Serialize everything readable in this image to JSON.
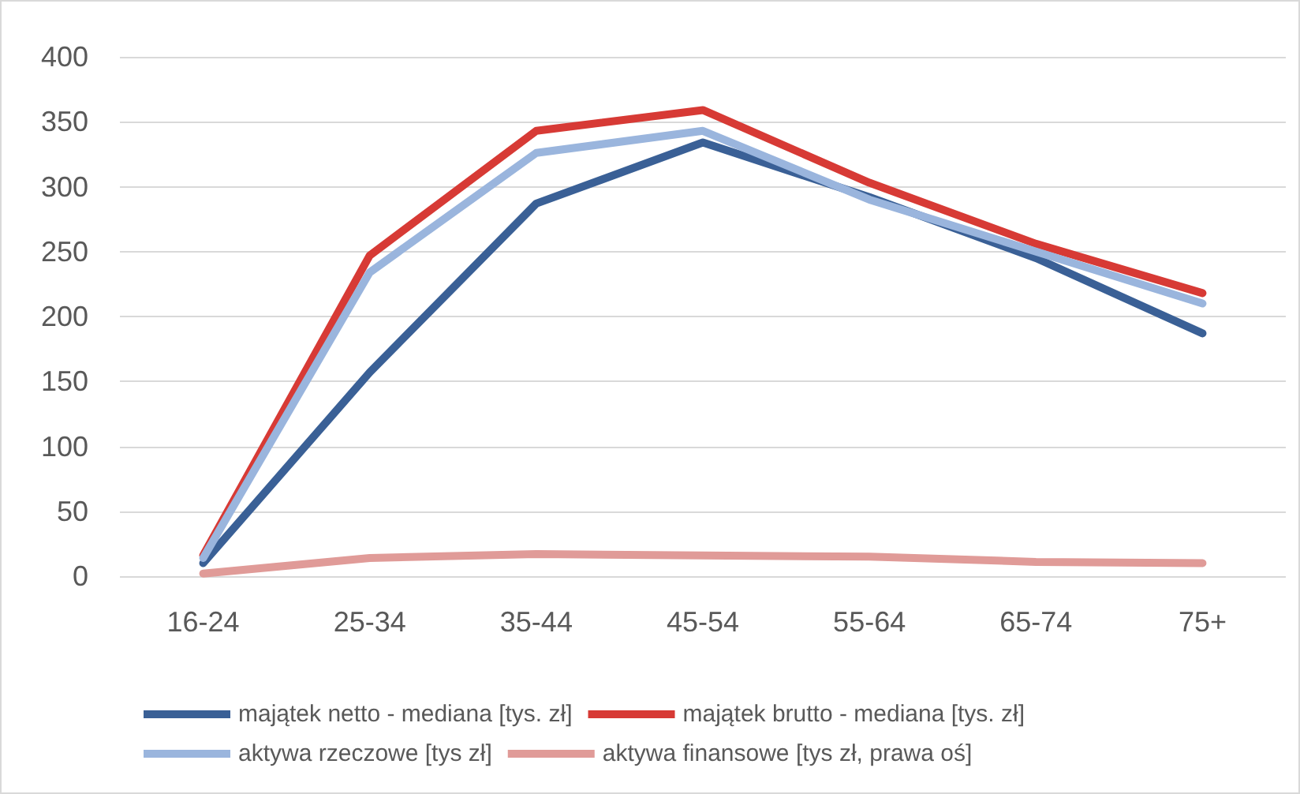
{
  "chart_data": {
    "type": "line",
    "categories": [
      "16-24",
      "25-34",
      "35-44",
      "45-54",
      "55-64",
      "65-74",
      "75+"
    ],
    "series": [
      {
        "name": "majątek netto - mediana [tys. zł]",
        "color": "#3a6096",
        "values": [
          10,
          157,
          287,
          334,
          292,
          245,
          187
        ]
      },
      {
        "name": "majątek brutto - mediana [tys. zł]",
        "color": "#d73a35",
        "values": [
          16,
          247,
          343,
          359,
          303,
          256,
          218
        ]
      },
      {
        "name": "aktywa rzeczowe [tys zł]",
        "color": "#9ab5dd",
        "values": [
          14,
          234,
          326,
          343,
          290,
          250,
          210
        ]
      },
      {
        "name": "aktywa finansowe [tys zł, prawa oś]",
        "color": "#e09b98",
        "values": [
          2,
          14,
          17,
          16,
          15,
          11,
          10
        ]
      }
    ],
    "ylim": [
      0,
      400
    ],
    "yticks": [
      0,
      50,
      100,
      150,
      200,
      250,
      300,
      350,
      400
    ],
    "grid": "y",
    "legend": "bottom",
    "marker": "none",
    "line_style": "solid"
  }
}
